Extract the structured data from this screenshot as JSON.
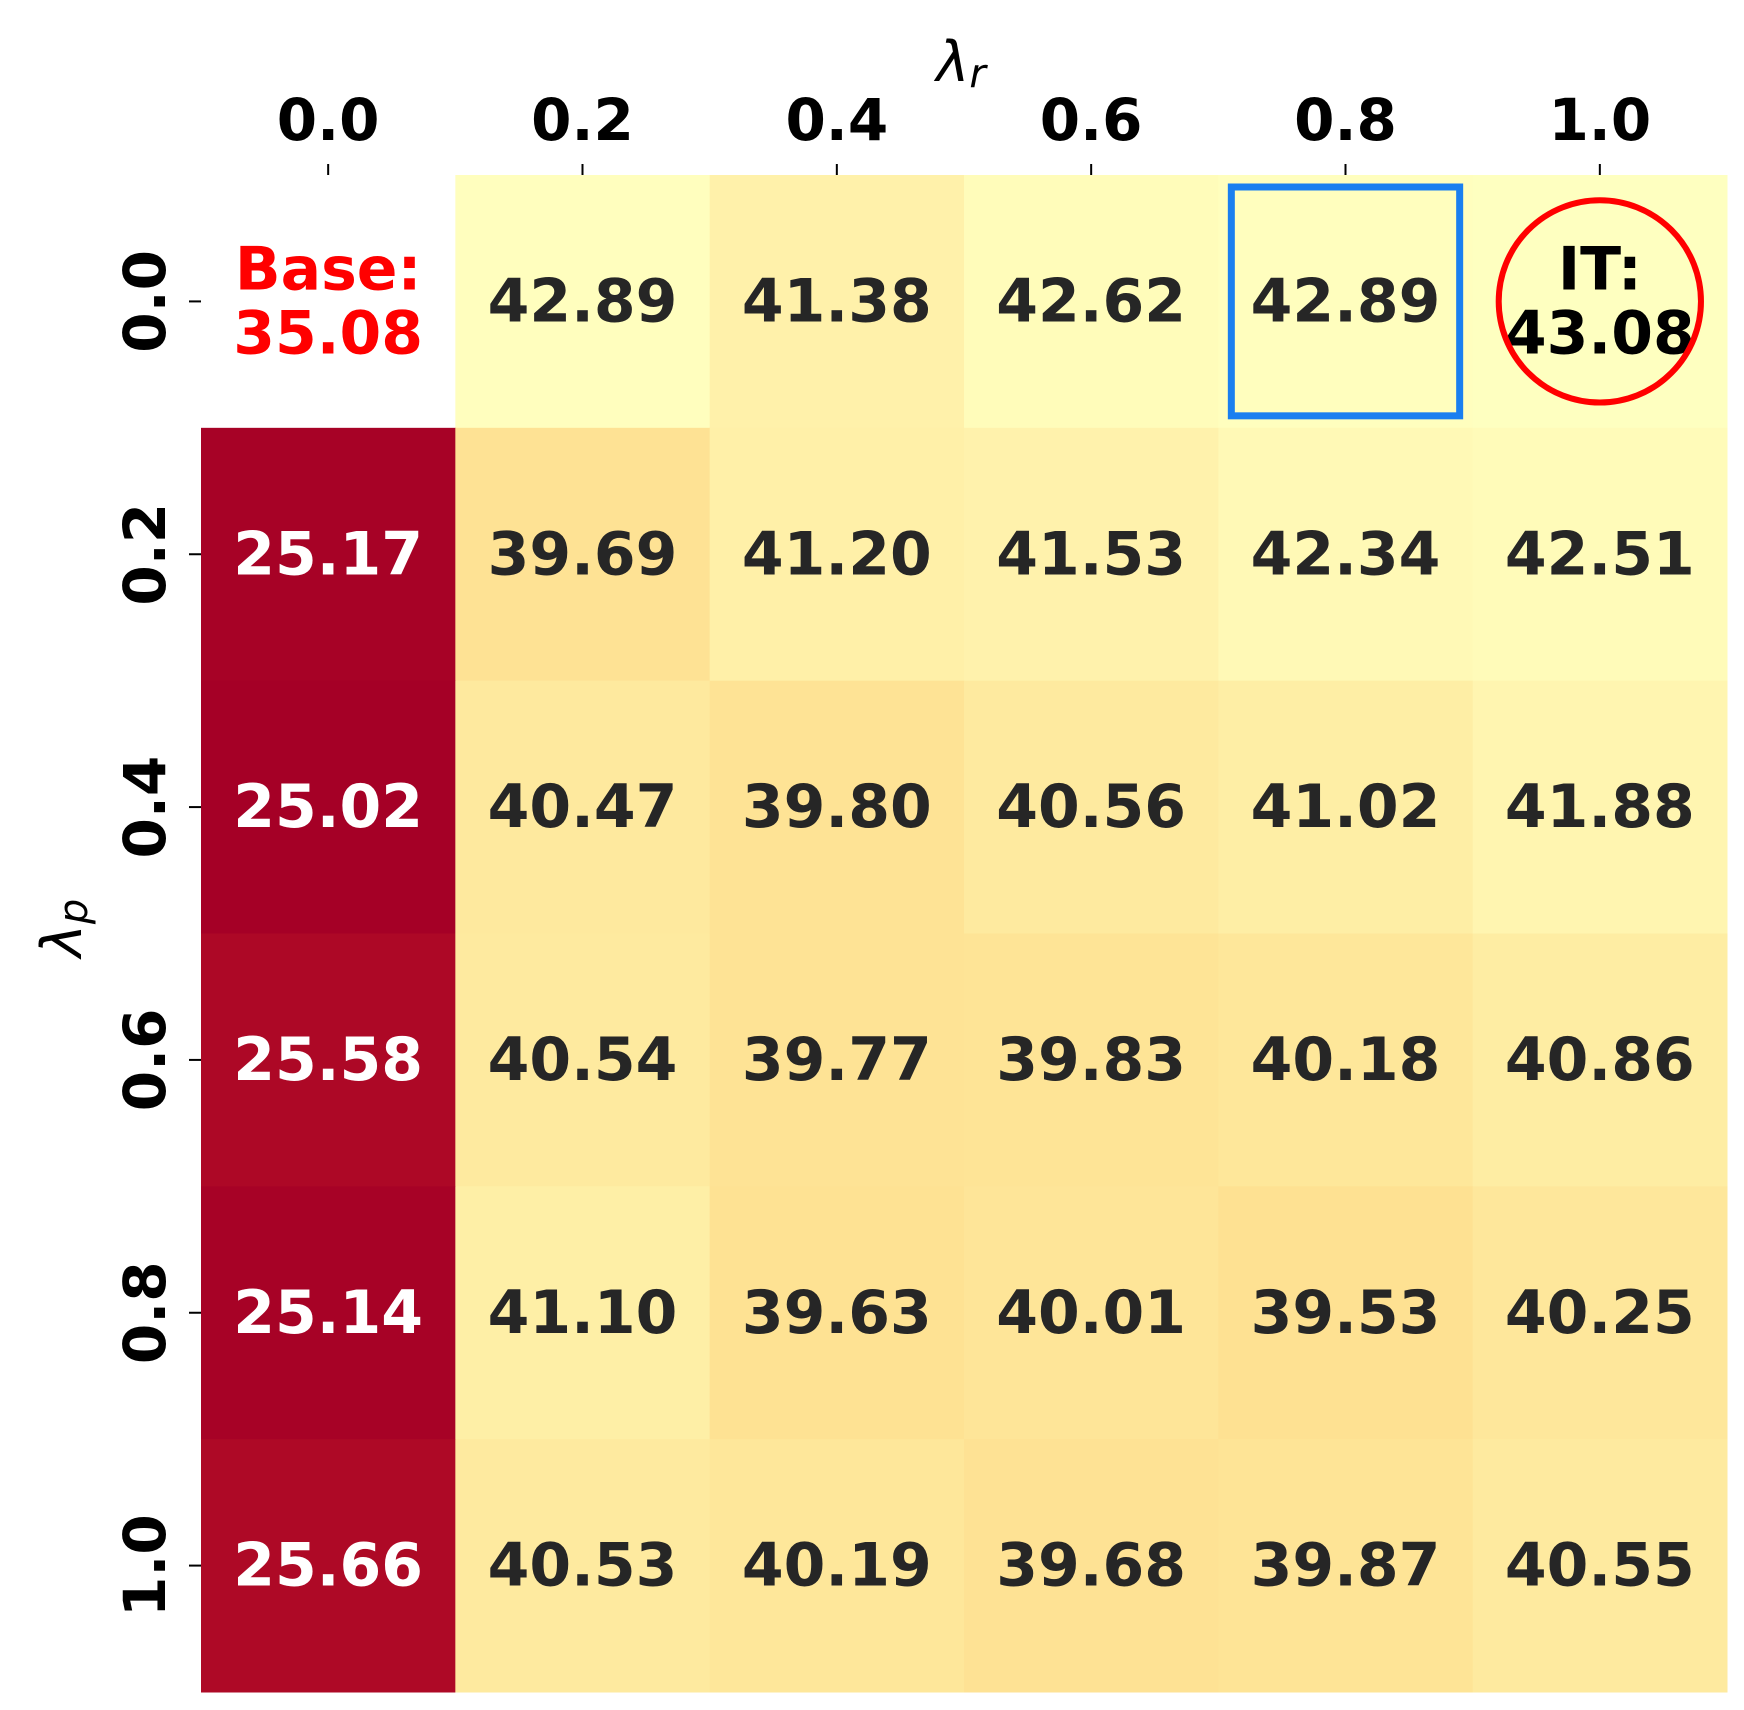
{
  "chart_data": {
    "type": "heatmap",
    "xlabel": {
      "text": "λ",
      "sub": "r"
    },
    "ylabel": {
      "text": "λ",
      "sub": "p"
    },
    "x": [
      "0.0",
      "0.2",
      "0.4",
      "0.6",
      "0.8",
      "1.0"
    ],
    "y": [
      "0.0",
      "0.2",
      "0.4",
      "0.6",
      "0.8",
      "1.0"
    ],
    "values": [
      [
        null,
        42.89,
        41.38,
        42.62,
        42.89,
        43.08
      ],
      [
        25.17,
        39.69,
        41.2,
        41.53,
        42.34,
        42.51
      ],
      [
        25.02,
        40.47,
        39.8,
        40.56,
        41.02,
        41.88
      ],
      [
        25.58,
        40.54,
        39.77,
        39.83,
        40.18,
        40.86
      ],
      [
        25.14,
        41.1,
        39.63,
        40.01,
        39.53,
        40.25
      ],
      [
        25.66,
        40.53,
        40.19,
        39.68,
        39.87,
        40.55
      ]
    ],
    "value_labels": [
      [
        null,
        "42.89",
        "41.38",
        "42.62",
        "42.89",
        "IT:\n43.08"
      ],
      [
        "25.17",
        "39.69",
        "41.20",
        "41.53",
        "42.34",
        "42.51"
      ],
      [
        "25.02",
        "40.47",
        "39.80",
        "40.56",
        "41.02",
        "41.88"
      ],
      [
        "25.58",
        "40.54",
        "39.77",
        "39.83",
        "40.18",
        "40.86"
      ],
      [
        "25.14",
        "41.10",
        "39.63",
        "40.01",
        "39.53",
        "40.25"
      ],
      [
        "25.66",
        "40.53",
        "40.19",
        "39.68",
        "39.87",
        "40.55"
      ]
    ],
    "annotations": [
      {
        "text": "Base:",
        "value": 35.08,
        "color": "#ff0000",
        "row": 0,
        "col": 0
      }
    ],
    "highlights": [
      {
        "shape": "rect",
        "row": 0,
        "col": 4,
        "color": "#1a7ff0"
      },
      {
        "shape": "circle",
        "row": 0,
        "col": 5,
        "color": "#ff0000"
      }
    ],
    "colormap": "RdYlBu",
    "vmin": 25,
    "vmax": 61
  }
}
